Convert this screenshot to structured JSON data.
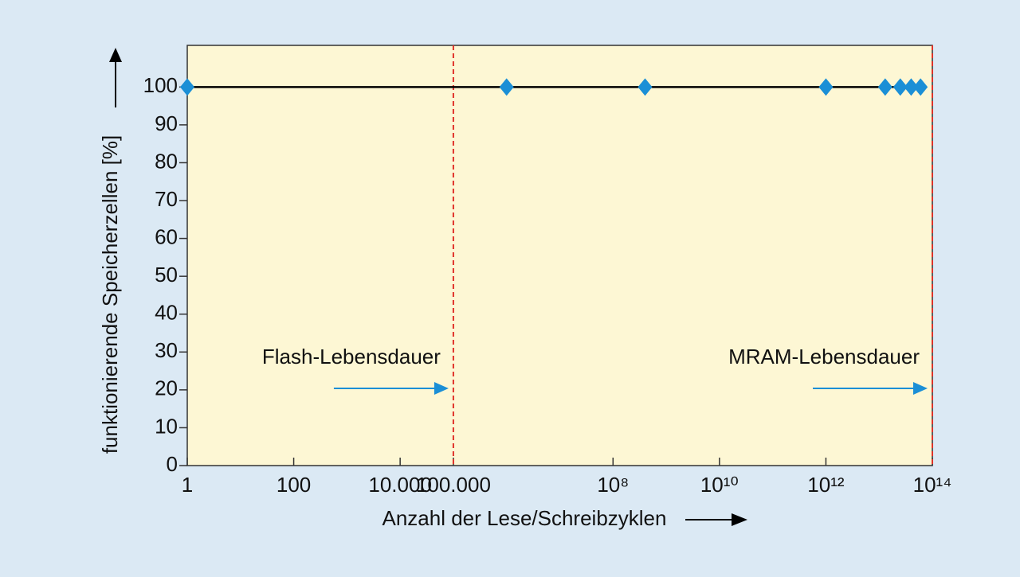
{
  "chart_data": {
    "type": "line",
    "y_label": "funktionierende Speicherzellen [%]",
    "x_label": "Anzahl der Lese/Schreibzyklen",
    "x_scale": "log",
    "x": [
      1,
      1000000,
      400000000,
      1000000000000,
      13000000000000,
      25000000000000,
      40000000000000,
      60000000000000
    ],
    "values": [
      100,
      100,
      100,
      100,
      100,
      100,
      100,
      100
    ],
    "color": "#1b8fd6",
    "line_color": "#000000",
    "xlim": [
      1,
      100000000000000
    ],
    "ylim": [
      0,
      111
    ],
    "xticks": [
      {
        "value": 1,
        "label": "1"
      },
      {
        "value": 100,
        "label": "100"
      },
      {
        "value": 10000,
        "label": "10.000"
      },
      {
        "value": 100000,
        "label": "100.000"
      },
      {
        "value": 100000000,
        "label": "10⁸"
      },
      {
        "value": 10000000000,
        "label": "10¹⁰"
      },
      {
        "value": 1000000000000,
        "label": "10¹²"
      },
      {
        "value": 100000000000000,
        "label": "10¹⁴"
      }
    ],
    "yticks": [
      0,
      10,
      20,
      30,
      40,
      50,
      60,
      70,
      80,
      90,
      100
    ],
    "annotations": [
      {
        "text": "Flash-Lebensdauer",
        "x": 100000,
        "color": "#e0322a"
      },
      {
        "text": "MRAM-Lebensdauer",
        "x": 100000000000000,
        "color": "#e0322a"
      }
    ]
  }
}
